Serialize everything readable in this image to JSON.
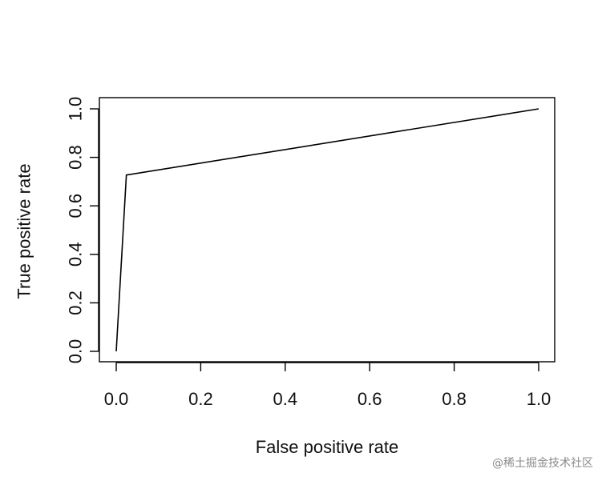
{
  "chart_data": {
    "type": "line",
    "title": "",
    "xlabel": "False positive rate",
    "ylabel": "True positive rate",
    "xlim": [
      0.0,
      1.0
    ],
    "ylim": [
      0.0,
      1.0
    ],
    "xticks": [
      "0.0",
      "0.2",
      "0.4",
      "0.6",
      "0.8",
      "1.0"
    ],
    "yticks": [
      "0.0",
      "0.2",
      "0.4",
      "0.6",
      "0.8",
      "1.0"
    ],
    "grid": false,
    "legend": "none",
    "series": [
      {
        "x": [
          0.0,
          0.024,
          1.0
        ],
        "y": [
          0.0,
          0.727,
          1.0
        ]
      }
    ],
    "line_color": "#000000",
    "axis_color": "#000000"
  },
  "watermark": "@稀土掘金技术社区"
}
